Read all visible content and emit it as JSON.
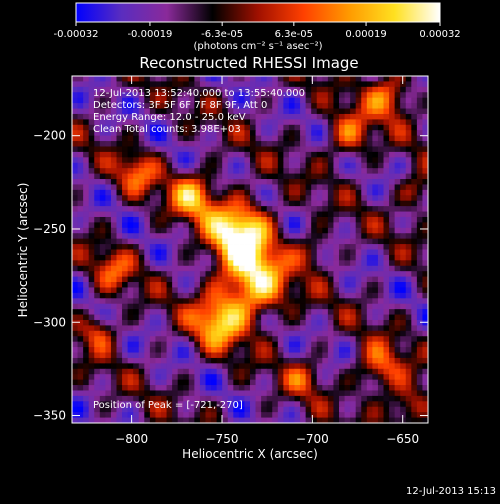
{
  "colorbar": {
    "tick_labels": [
      "-0.00032",
      "-0.00019",
      "-6.3e-05",
      "6.3e-05",
      "0.00019",
      "0.00032"
    ],
    "tick_values": [
      -0.00032,
      -0.00019,
      -6.3e-05,
      6.3e-05,
      0.00019,
      0.00032
    ],
    "range": [
      -0.00032,
      0.00032
    ],
    "units_label": "(photons cm⁻² s⁻¹ asec⁻²)",
    "stops": [
      "#0000ff",
      "#5a2dbf",
      "#8a2a9a",
      "#000000",
      "#a01000",
      "#ff4000",
      "#ff9a00",
      "#ffe020",
      "#ffffff"
    ]
  },
  "chart_data": {
    "type": "heatmap",
    "title": "Reconstructed RHESSI Image",
    "xlabel": "Heliocentric X (arcsec)",
    "ylabel": "Heliocentric Y (arcsec)",
    "xlim": [
      -833,
      -636
    ],
    "ylim": [
      -354,
      -168
    ],
    "xticks": [
      -800,
      -750,
      -700,
      -650
    ],
    "yticks": [
      -200,
      -250,
      -300,
      -350
    ],
    "xtick_labels": [
      "−800",
      "−750",
      "−700",
      "−650"
    ],
    "ytick_labels": [
      "−200",
      "−250",
      "−300",
      "−350"
    ],
    "annotations": [
      "12-Jul-2013 13:52:40.000 to 13:55:40.000",
      "Detectors: 3F 5F 6F 7F 8F 9F, Att 0",
      "Energy Range: 12.0 - 25.0 keV",
      "Clean     Total counts: 3.98E+03"
    ],
    "peak_label": "Position of Peak = [-721,-270]",
    "peak_position": [
      -721,
      -270
    ],
    "sources": [
      {
        "x": -740,
        "y": -252,
        "amp": 1.0,
        "s": 12
      },
      {
        "x": -733,
        "y": -280,
        "amp": 0.85,
        "s": 13
      },
      {
        "x": -752,
        "y": -300,
        "amp": 0.7,
        "s": 10
      },
      {
        "x": -766,
        "y": -232,
        "amp": 0.65,
        "s": 9
      },
      {
        "x": -797,
        "y": -220,
        "amp": 0.45,
        "s": 8
      },
      {
        "x": -810,
        "y": -272,
        "amp": 0.4,
        "s": 8
      },
      {
        "x": -818,
        "y": -305,
        "amp": 0.45,
        "s": 7
      },
      {
        "x": -680,
        "y": -200,
        "amp": 0.5,
        "s": 9
      },
      {
        "x": -658,
        "y": -178,
        "amp": 0.55,
        "s": 9
      },
      {
        "x": -642,
        "y": -230,
        "amp": 0.4,
        "s": 7
      },
      {
        "x": -663,
        "y": -325,
        "amp": 0.55,
        "s": 9
      },
      {
        "x": -647,
        "y": -345,
        "amp": 0.5,
        "s": 8
      },
      {
        "x": -705,
        "y": -330,
        "amp": 0.35,
        "s": 7
      },
      {
        "x": -700,
        "y": -262,
        "amp": 0.35,
        "s": 7
      }
    ]
  },
  "footer": {
    "timestamp": "12-Jul-2013 15:13"
  }
}
